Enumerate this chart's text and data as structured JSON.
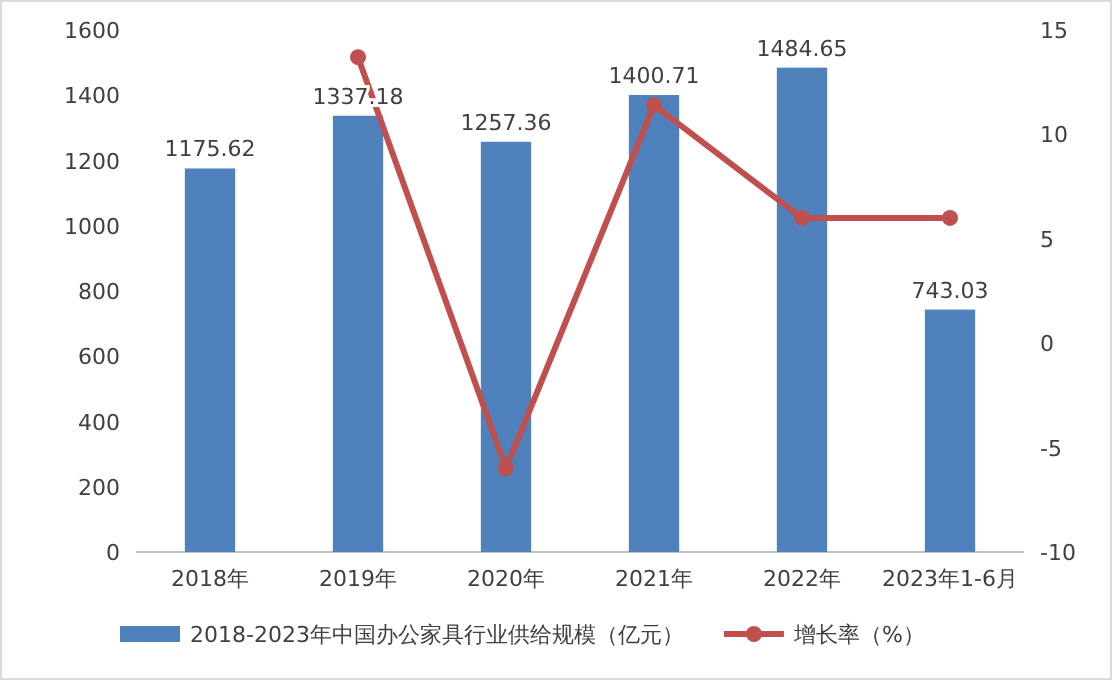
{
  "chart_data": {
    "type": "bar",
    "categories": [
      "2018年",
      "2019年",
      "2020年",
      "2021年",
      "2022年",
      "2023年1-6月"
    ],
    "series": [
      {
        "name": "2018-2023年中国办公家具行业供给规模（亿元）",
        "color": "#4f81bd",
        "values": [
          1175.62,
          1337.18,
          1257.36,
          1400.71,
          1484.65,
          743.03
        ],
        "value_labels": [
          "1175.62",
          "1337.18",
          "1257.36",
          "1400.71",
          "1484.65",
          "743.03"
        ]
      },
      {
        "name": "增长率（%）",
        "type": "line",
        "axis": "y2",
        "color": "#c0504d",
        "values": [
          null,
          13.7,
          -6.0,
          11.4,
          6.0,
          6.0
        ]
      }
    ],
    "ylim": [
      0,
      1600
    ],
    "yticks": [
      0,
      200,
      400,
      600,
      800,
      1000,
      1200,
      1400,
      1600
    ],
    "y2lim": [
      -10,
      15
    ],
    "y2ticks": [
      -10,
      -5,
      0,
      5,
      10,
      15
    ],
    "legend": "bottom",
    "marker": "circle",
    "line_style": "solid"
  }
}
